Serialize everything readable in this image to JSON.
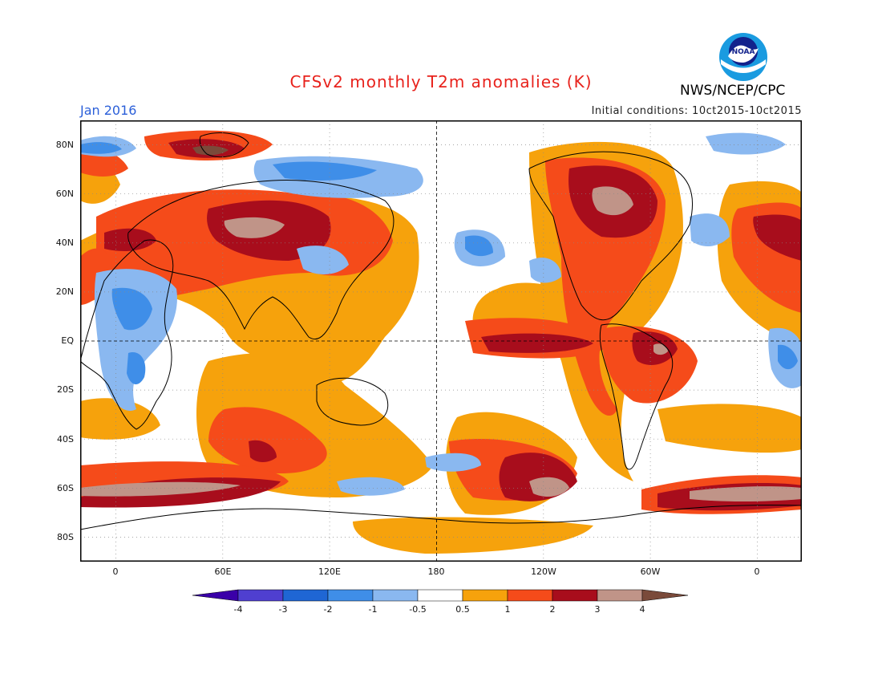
{
  "header": {
    "title": "CFSv2 monthly T2m anomalies (K)",
    "month": "Jan 2016",
    "initial_conditions": "Initial conditions: 10ct2015-10ct2015",
    "agency": "NWS/NCEP/CPC",
    "logo_text": "NOAA"
  },
  "map": {
    "projection": "cylindrical equidistant",
    "center_longitude": "180",
    "lat_labels": [
      "80N",
      "60N",
      "40N",
      "20N",
      "EQ",
      "20S",
      "40S",
      "60S",
      "80S"
    ],
    "lon_labels": [
      "0",
      "60E",
      "120E",
      "180",
      "120W",
      "60W",
      "0"
    ]
  },
  "colorbar": {
    "labels": [
      "-4",
      "-3",
      "-2",
      "-1",
      "-0.5",
      "0.5",
      "1",
      "2",
      "3",
      "4"
    ],
    "colors": [
      "#3a00a8",
      "#4f3fd0",
      "#1f66d4",
      "#3f8ee8",
      "#8ab8f0",
      "#ffffff",
      "#f6a20c",
      "#f54b1a",
      "#a80d1c",
      "#c09488",
      "#7a4a3a"
    ]
  },
  "palette": {
    "title_red": "#e8221c",
    "month_blue": "#2b5fd9"
  }
}
